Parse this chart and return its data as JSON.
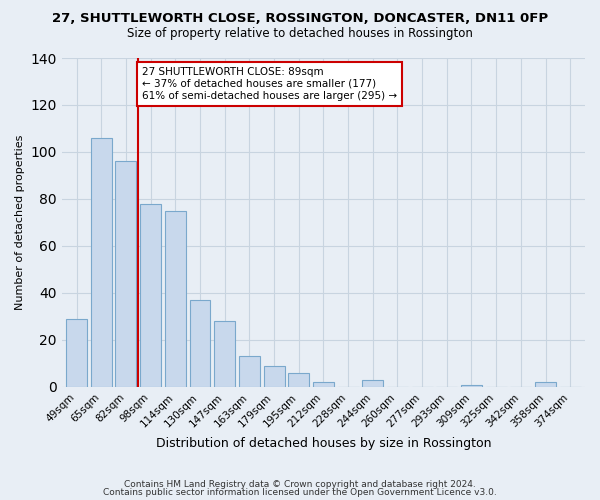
{
  "title": "27, SHUTTLEWORTH CLOSE, ROSSINGTON, DONCASTER, DN11 0FP",
  "subtitle": "Size of property relative to detached houses in Rossington",
  "xlabel": "Distribution of detached houses by size in Rossington",
  "ylabel": "Number of detached properties",
  "footer1": "Contains HM Land Registry data © Crown copyright and database right 2024.",
  "footer2": "Contains public sector information licensed under the Open Government Licence v3.0.",
  "categories": [
    "49sqm",
    "65sqm",
    "82sqm",
    "98sqm",
    "114sqm",
    "130sqm",
    "147sqm",
    "163sqm",
    "179sqm",
    "195sqm",
    "212sqm",
    "228sqm",
    "244sqm",
    "260sqm",
    "277sqm",
    "293sqm",
    "309sqm",
    "325sqm",
    "342sqm",
    "358sqm",
    "374sqm"
  ],
  "values": [
    29,
    106,
    96,
    78,
    75,
    37,
    28,
    13,
    9,
    6,
    2,
    0,
    3,
    0,
    0,
    0,
    1,
    0,
    0,
    2,
    0
  ],
  "bar_color": "#c8d8ec",
  "bar_edge_color": "#7aa8cc",
  "red_line_x": 2.5,
  "red_line_label": "27 SHUTTLEWORTH CLOSE: 89sqm",
  "annotation_line1": "← 37% of detached houses are smaller (177)",
  "annotation_line2": "61% of semi-detached houses are larger (295) →",
  "annotation_box_color": "#ffffff",
  "annotation_box_edge": "#cc0000",
  "red_line_color": "#cc0000",
  "ylim": [
    0,
    140
  ],
  "background_color": "#e8eef5",
  "plot_bg_color": "#e8eef5",
  "grid_color": "#c8d4e0",
  "title_fontsize": 9.5,
  "subtitle_fontsize": 8.5,
  "xlabel_fontsize": 9.0,
  "ylabel_fontsize": 8.0,
  "tick_fontsize": 7.5,
  "footer_fontsize": 6.5
}
